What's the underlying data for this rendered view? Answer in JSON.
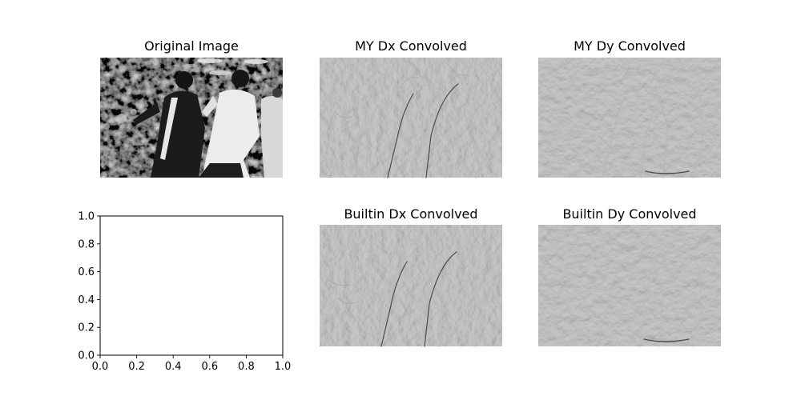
{
  "chart_data": [
    {
      "type": "image",
      "title": "Original Image",
      "image": "grayscale-photo",
      "shows": "two people in suits dancing",
      "colormap": "gray"
    },
    {
      "type": "image",
      "title": "MY Dx Convolved",
      "image": "horizontal-gradient-edge-map",
      "colormap": "gray"
    },
    {
      "type": "image",
      "title": "MY Dy Convolved",
      "image": "vertical-gradient-edge-map",
      "colormap": "gray"
    },
    {
      "type": "scatter",
      "title": "",
      "xlabel": "",
      "ylabel": "",
      "xlim": [
        0.0,
        1.0
      ],
      "ylim": [
        0.0,
        1.0
      ],
      "x_ticks": [
        "0.0",
        "0.2",
        "0.4",
        "0.6",
        "0.8",
        "1.0"
      ],
      "y_ticks": [
        "0.0",
        "0.2",
        "0.4",
        "0.6",
        "0.8",
        "1.0"
      ],
      "series": []
    },
    {
      "type": "image",
      "title": "Builtin Dx Convolved",
      "image": "horizontal-gradient-edge-map",
      "colormap": "gray"
    },
    {
      "type": "image",
      "title": "Builtin Dy Convolved",
      "image": "vertical-gradient-edge-map",
      "colormap": "gray"
    }
  ]
}
